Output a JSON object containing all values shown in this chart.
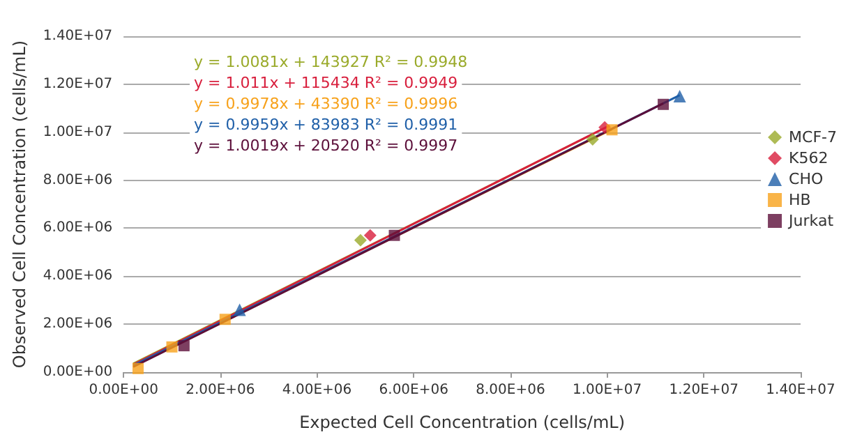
{
  "chart_data": {
    "type": "scatter",
    "xlabel": "Expected Cell Concentration (cells/mL)",
    "ylabel": "Observed Cell Concentration (cells/mL)",
    "xlim": [
      0,
      14000000
    ],
    "ylim": [
      0,
      14000000
    ],
    "xticks": [
      {
        "value": 0,
        "label": "0.00E+00"
      },
      {
        "value": 2000000,
        "label": "2.00E+06"
      },
      {
        "value": 4000000,
        "label": "4.00E+06"
      },
      {
        "value": 6000000,
        "label": "6.00E+06"
      },
      {
        "value": 8000000,
        "label": "8.00E+06"
      },
      {
        "value": 10000000,
        "label": "1.00E+07"
      },
      {
        "value": 12000000,
        "label": "1.20E+07"
      },
      {
        "value": 14000000,
        "label": "1.40E+07"
      }
    ],
    "yticks": [
      {
        "value": 0,
        "label": "0.00E+00"
      },
      {
        "value": 2000000,
        "label": "2.00E+06"
      },
      {
        "value": 4000000,
        "label": "4.00E+06"
      },
      {
        "value": 6000000,
        "label": "6.00E+06"
      },
      {
        "value": 8000000,
        "label": "8.00E+06"
      },
      {
        "value": 10000000,
        "label": "1.00E+07"
      },
      {
        "value": 12000000,
        "label": "1.20E+07"
      },
      {
        "value": 14000000,
        "label": "1.40E+07"
      }
    ],
    "grid": "y",
    "legend": "right",
    "annotations": [
      "y = 1.0081x + 143927 R² = 0.9948",
      "y = 1.011x + 115434 R² = 0.9949",
      "y = 0.9978x + 43390 R² = 0.9996",
      "y = 0.9959x + 83983 R² = 0.9991",
      "y = 1.0019x + 20520 R² = 0.9997"
    ],
    "series": [
      {
        "name": "MCF-7",
        "color": "#9aaa2a",
        "marker": "diamond",
        "x": [
          4900000,
          9700000
        ],
        "values": [
          5500000,
          9700000
        ]
      },
      {
        "name": "K562",
        "color": "#d81e3c",
        "marker": "diamond",
        "x": [
          5100000,
          9950000
        ],
        "values": [
          5700000,
          10200000
        ]
      },
      {
        "name": "CHO",
        "color": "#1f5fa8",
        "marker": "triangle",
        "x": [
          2400000,
          11500000
        ],
        "values": [
          2600000,
          11500000
        ]
      },
      {
        "name": "HB",
        "color": "#f7a11a",
        "marker": "square",
        "x": [
          300000,
          1000000,
          2100000,
          10100000
        ],
        "values": [
          150000,
          1050000,
          2200000,
          10100000
        ]
      },
      {
        "name": "Jurkat",
        "color": "#5c0f3a",
        "marker": "square",
        "x": [
          1250000,
          5600000,
          11160000
        ],
        "values": [
          1100000,
          5700000,
          11160000
        ]
      },
      {
        "type": "line",
        "marker": "none",
        "color": "#9aaa2a",
        "x": [
          200000,
          9700000
        ],
        "values": [
          350000,
          9920000
        ]
      },
      {
        "type": "line",
        "marker": "none",
        "color": "#d81e3c",
        "x": [
          200000,
          10050000
        ],
        "values": [
          320000,
          10280000
        ]
      },
      {
        "type": "line",
        "marker": "none",
        "color": "#f7a11a",
        "x": [
          300000,
          10100000
        ],
        "values": [
          340000,
          10120000
        ]
      },
      {
        "type": "line",
        "marker": "none",
        "color": "#1f5fa8",
        "x": [
          200000,
          11500000
        ],
        "values": [
          280000,
          11540000
        ]
      },
      {
        "type": "line",
        "marker": "none",
        "color": "#5c0f3a",
        "x": [
          200000,
          11160000
        ],
        "values": [
          220000,
          11200000
        ]
      }
    ]
  }
}
